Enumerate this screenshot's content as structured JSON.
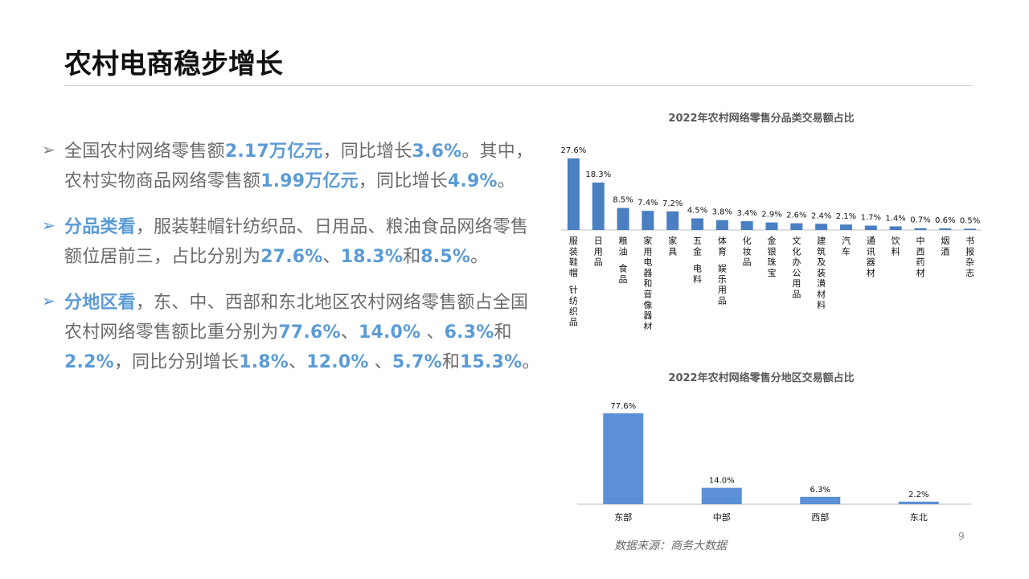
{
  "slide": {
    "title": "农村电商稳步增长",
    "page_number": "9",
    "source": "数据来源：商务大数据"
  },
  "bullets": [
    {
      "mark": "➢",
      "segments": [
        {
          "text": "全国农村网络零售额",
          "hl": false
        },
        {
          "text": "2.17万亿元",
          "hl": true
        },
        {
          "text": "，同比增长",
          "hl": false
        },
        {
          "text": "3.6%",
          "hl": true
        },
        {
          "text": "。其中，农村实物商品网络零售额",
          "hl": false
        },
        {
          "text": "1.99万亿元",
          "hl": true
        },
        {
          "text": "，同比增长",
          "hl": false
        },
        {
          "text": "4.9%",
          "hl": true
        },
        {
          "text": "。",
          "hl": false
        }
      ]
    },
    {
      "mark": "➢",
      "segments": [
        {
          "text": "分品类看",
          "hl": true
        },
        {
          "text": "，服装鞋帽针纺织品、日用品、粮油食品网络零售额位居前三，占比分别为",
          "hl": false
        },
        {
          "text": "27.6%",
          "hl": true
        },
        {
          "text": "、",
          "hl": false
        },
        {
          "text": "18.3%",
          "hl": true
        },
        {
          "text": "和",
          "hl": false
        },
        {
          "text": "8.5%",
          "hl": true
        },
        {
          "text": "。",
          "hl": false
        }
      ]
    },
    {
      "mark": "➢",
      "segments": [
        {
          "text": "分地区看",
          "hl": true
        },
        {
          "text": "，东、中、西部和东北地区农村网络零售额占全国农村网络零售额比重分别为",
          "hl": false
        },
        {
          "text": "77.6%",
          "hl": true
        },
        {
          "text": "、",
          "hl": false
        },
        {
          "text": "14.0%",
          "hl": true
        },
        {
          "text": " 、",
          "hl": false
        },
        {
          "text": "6.3%",
          "hl": true
        },
        {
          "text": "和",
          "hl": false
        },
        {
          "text": "2.2%",
          "hl": true
        },
        {
          "text": "，同比分别增长",
          "hl": false
        },
        {
          "text": "1.8%",
          "hl": true
        },
        {
          "text": "、",
          "hl": false
        },
        {
          "text": "12.0%",
          "hl": true
        },
        {
          "text": " 、",
          "hl": false
        },
        {
          "text": "5.7%",
          "hl": true
        },
        {
          "text": "和",
          "hl": false
        },
        {
          "text": "15.3%",
          "hl": true
        },
        {
          "text": "。",
          "hl": false
        }
      ]
    }
  ],
  "colors": {
    "highlight": "#5b9bd5",
    "bar_category": "#4a7fc1",
    "bar_region": "#5b8fd6"
  },
  "chart_data": [
    {
      "type": "bar",
      "title": "2022年农村网络零售分品类交易额占比",
      "categories": [
        "服装鞋帽 针纺织品",
        "日用品",
        "粮油 食品",
        "家用电器和音像器材",
        "家具",
        "五金 电料",
        "体育 娱乐用品",
        "化妆品",
        "金银珠宝",
        "文化办公用品",
        "建筑及装潢材料",
        "汽车",
        "通讯器材",
        "饮料",
        "中西药材",
        "烟酒",
        "书报杂志"
      ],
      "values": [
        27.6,
        18.3,
        8.5,
        7.4,
        7.2,
        4.5,
        3.8,
        3.4,
        2.9,
        2.6,
        2.4,
        2.1,
        1.7,
        1.4,
        0.7,
        0.6,
        0.5
      ],
      "value_labels": [
        "27.6%",
        "18.3%",
        "8.5%",
        "7.4%",
        "7.2%",
        "4.5%",
        "3.8%",
        "3.4%",
        "2.9%",
        "2.6%",
        "2.4%",
        "2.1%",
        "1.7%",
        "1.4%",
        "0.7%",
        "0.6%",
        "0.5%"
      ],
      "ylim": [
        0,
        30
      ],
      "grid": false,
      "legend": "none"
    },
    {
      "type": "bar",
      "title": "2022年农村网络零售分地区交易额占比",
      "categories": [
        "东部",
        "中部",
        "西部",
        "东北"
      ],
      "values": [
        77.6,
        14.0,
        6.3,
        2.2
      ],
      "value_labels": [
        "77.6%",
        "14.0%",
        "6.3%",
        "2.2%"
      ],
      "ylim": [
        0,
        80
      ],
      "grid": false,
      "legend": "none"
    }
  ]
}
